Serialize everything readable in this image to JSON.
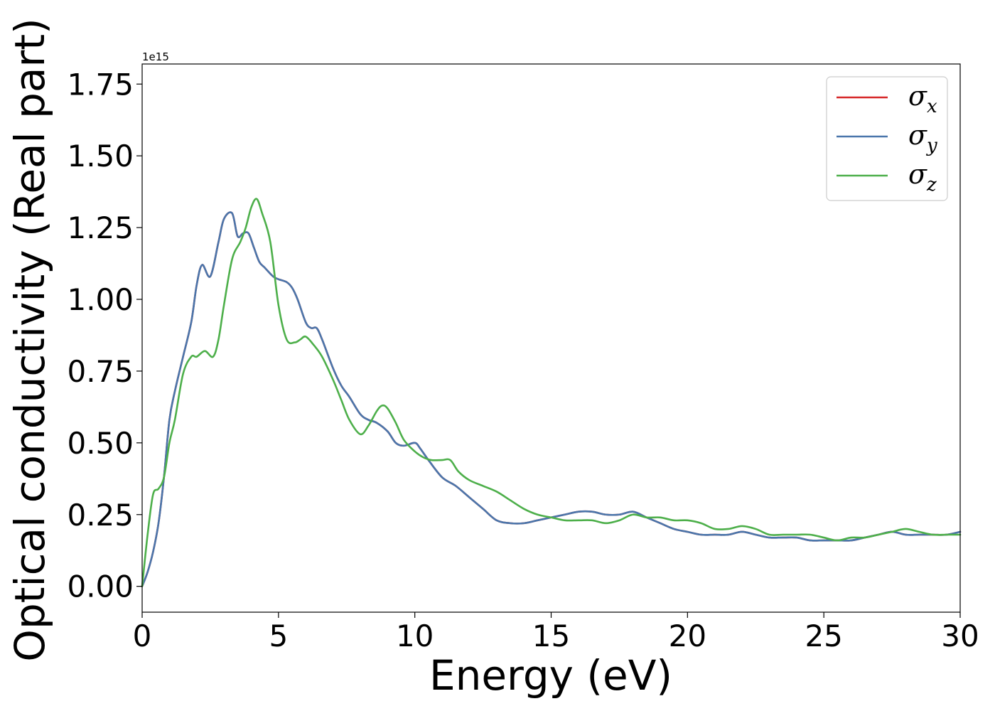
{
  "chart_data": {
    "type": "line",
    "title": "",
    "xlabel": "Energy (eV)",
    "ylabel": "Optical conductivity (Real part)",
    "y_offset_label": "1e15",
    "xlim": [
      0,
      30
    ],
    "ylim": [
      -0.09,
      1.82
    ],
    "x_ticks": [
      0,
      5,
      10,
      15,
      20,
      25,
      30
    ],
    "x_tick_labels": [
      "0",
      "5",
      "10",
      "15",
      "20",
      "25",
      "30"
    ],
    "y_ticks": [
      0,
      0.25,
      0.5,
      0.75,
      1.0,
      1.25,
      1.5,
      1.75
    ],
    "y_tick_labels": [
      "0.00",
      "0.25",
      "0.50",
      "0.75",
      "1.00",
      "1.25",
      "1.50",
      "1.75"
    ],
    "grid": false,
    "legend_position": "top-right",
    "series": [
      {
        "name": "σ_x",
        "legend_base": "σ",
        "legend_sub": "x",
        "color": "#d62728",
        "x": [
          0,
          0.2,
          0.4,
          0.6,
          0.8,
          1.0,
          1.2,
          1.5,
          1.8,
          2.0,
          2.2,
          2.5,
          2.8,
          3.0,
          3.3,
          3.5,
          3.7,
          3.9,
          4.1,
          4.3,
          4.5,
          4.8,
          5.0,
          5.3,
          5.5,
          5.7,
          6.0,
          6.2,
          6.4,
          6.6,
          7.0,
          7.3,
          7.6,
          8.0,
          8.3,
          8.6,
          9.0,
          9.3,
          9.6,
          10.0,
          10.2,
          10.5,
          11.0,
          11.5,
          12.0,
          12.5,
          13.0,
          13.5,
          14.0,
          14.5,
          15.0,
          15.5,
          16.0,
          16.5,
          17.0,
          17.5,
          18.0,
          18.5,
          19.0,
          19.5,
          20.0,
          20.5,
          21.0,
          21.5,
          22.0,
          22.5,
          23.0,
          23.5,
          24.0,
          24.5,
          25.0,
          25.5,
          26.0,
          26.5,
          27.0,
          27.5,
          28.0,
          28.5,
          29.0,
          29.5,
          30.0
        ],
        "y": [
          0.0,
          0.05,
          0.12,
          0.22,
          0.38,
          0.58,
          0.68,
          0.8,
          0.92,
          1.05,
          1.12,
          1.08,
          1.2,
          1.28,
          1.3,
          1.22,
          1.23,
          1.23,
          1.18,
          1.13,
          1.11,
          1.08,
          1.07,
          1.06,
          1.04,
          1.0,
          0.92,
          0.9,
          0.9,
          0.86,
          0.76,
          0.7,
          0.66,
          0.6,
          0.58,
          0.57,
          0.54,
          0.5,
          0.49,
          0.5,
          0.48,
          0.44,
          0.38,
          0.35,
          0.31,
          0.27,
          0.23,
          0.22,
          0.22,
          0.23,
          0.24,
          0.25,
          0.26,
          0.26,
          0.25,
          0.25,
          0.26,
          0.24,
          0.22,
          0.2,
          0.19,
          0.18,
          0.18,
          0.18,
          0.19,
          0.18,
          0.17,
          0.17,
          0.17,
          0.16,
          0.16,
          0.16,
          0.16,
          0.17,
          0.18,
          0.19,
          0.18,
          0.18,
          0.18,
          0.18,
          0.19
        ]
      },
      {
        "name": "σ_y",
        "legend_base": "σ",
        "legend_sub": "y",
        "color": "#4a76ab",
        "x": [
          0,
          0.2,
          0.4,
          0.6,
          0.8,
          1.0,
          1.2,
          1.5,
          1.8,
          2.0,
          2.2,
          2.5,
          2.8,
          3.0,
          3.3,
          3.5,
          3.7,
          3.9,
          4.1,
          4.3,
          4.5,
          4.8,
          5.0,
          5.3,
          5.5,
          5.7,
          6.0,
          6.2,
          6.4,
          6.6,
          7.0,
          7.3,
          7.6,
          8.0,
          8.3,
          8.6,
          9.0,
          9.3,
          9.6,
          10.0,
          10.2,
          10.5,
          11.0,
          11.5,
          12.0,
          12.5,
          13.0,
          13.5,
          14.0,
          14.5,
          15.0,
          15.5,
          16.0,
          16.5,
          17.0,
          17.5,
          18.0,
          18.5,
          19.0,
          19.5,
          20.0,
          20.5,
          21.0,
          21.5,
          22.0,
          22.5,
          23.0,
          23.5,
          24.0,
          24.5,
          25.0,
          25.5,
          26.0,
          26.5,
          27.0,
          27.5,
          28.0,
          28.5,
          29.0,
          29.5,
          30.0
        ],
        "y": [
          0.0,
          0.05,
          0.12,
          0.22,
          0.38,
          0.58,
          0.68,
          0.8,
          0.92,
          1.05,
          1.12,
          1.08,
          1.2,
          1.28,
          1.3,
          1.22,
          1.23,
          1.23,
          1.18,
          1.13,
          1.11,
          1.08,
          1.07,
          1.06,
          1.04,
          1.0,
          0.92,
          0.9,
          0.9,
          0.86,
          0.76,
          0.7,
          0.66,
          0.6,
          0.58,
          0.57,
          0.54,
          0.5,
          0.49,
          0.5,
          0.48,
          0.44,
          0.38,
          0.35,
          0.31,
          0.27,
          0.23,
          0.22,
          0.22,
          0.23,
          0.24,
          0.25,
          0.26,
          0.26,
          0.25,
          0.25,
          0.26,
          0.24,
          0.22,
          0.2,
          0.19,
          0.18,
          0.18,
          0.18,
          0.19,
          0.18,
          0.17,
          0.17,
          0.17,
          0.16,
          0.16,
          0.16,
          0.16,
          0.17,
          0.18,
          0.19,
          0.18,
          0.18,
          0.18,
          0.18,
          0.19
        ]
      },
      {
        "name": "σ_z",
        "legend_base": "σ",
        "legend_sub": "z",
        "color": "#4daf4a",
        "x": [
          0,
          0.2,
          0.4,
          0.6,
          0.8,
          1.0,
          1.2,
          1.5,
          1.8,
          2.0,
          2.3,
          2.6,
          2.8,
          3.0,
          3.3,
          3.6,
          3.8,
          4.0,
          4.2,
          4.4,
          4.7,
          5.0,
          5.3,
          5.6,
          5.8,
          6.0,
          6.3,
          6.6,
          7.0,
          7.3,
          7.6,
          8.0,
          8.3,
          8.6,
          8.8,
          9.0,
          9.3,
          9.6,
          10.0,
          10.3,
          10.6,
          11.0,
          11.3,
          11.6,
          12.0,
          12.5,
          13.0,
          13.5,
          14.0,
          14.5,
          15.0,
          15.5,
          16.0,
          16.5,
          17.0,
          17.5,
          18.0,
          18.5,
          19.0,
          19.5,
          20.0,
          20.5,
          21.0,
          21.5,
          22.0,
          22.5,
          23.0,
          23.5,
          24.0,
          24.5,
          25.0,
          25.5,
          26.0,
          26.5,
          27.0,
          27.5,
          28.0,
          28.5,
          29.0,
          29.5,
          30.0
        ],
        "y": [
          0.0,
          0.18,
          0.32,
          0.34,
          0.38,
          0.5,
          0.58,
          0.74,
          0.8,
          0.8,
          0.82,
          0.8,
          0.86,
          0.98,
          1.14,
          1.2,
          1.25,
          1.32,
          1.35,
          1.3,
          1.2,
          0.98,
          0.86,
          0.85,
          0.86,
          0.87,
          0.84,
          0.8,
          0.72,
          0.65,
          0.58,
          0.53,
          0.56,
          0.61,
          0.63,
          0.62,
          0.57,
          0.51,
          0.47,
          0.45,
          0.44,
          0.44,
          0.44,
          0.4,
          0.37,
          0.35,
          0.33,
          0.3,
          0.27,
          0.25,
          0.24,
          0.23,
          0.23,
          0.23,
          0.22,
          0.23,
          0.25,
          0.24,
          0.24,
          0.23,
          0.23,
          0.22,
          0.2,
          0.2,
          0.21,
          0.2,
          0.18,
          0.18,
          0.18,
          0.18,
          0.17,
          0.16,
          0.17,
          0.17,
          0.18,
          0.19,
          0.2,
          0.19,
          0.18,
          0.18,
          0.18
        ]
      }
    ]
  }
}
